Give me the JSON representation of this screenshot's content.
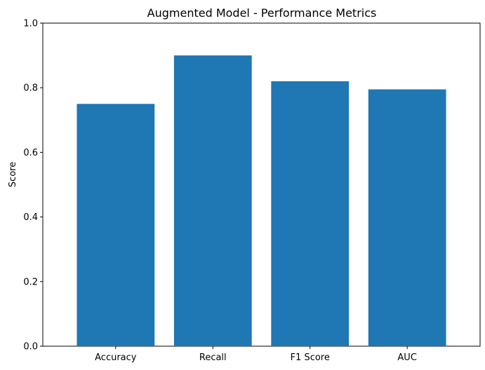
{
  "chart_data": {
    "type": "bar",
    "title": "Augmented Model - Performance Metrics",
    "xlabel": "",
    "ylabel": "Score",
    "categories": [
      "Accuracy",
      "Recall",
      "F1 Score",
      "AUC"
    ],
    "values": [
      0.75,
      0.9,
      0.82,
      0.795
    ],
    "ylim": [
      0,
      1.0
    ],
    "yticks": [
      "0.0",
      "0.2",
      "0.4",
      "0.6",
      "0.8",
      "1.0"
    ],
    "grid": false,
    "bar_color": "#1f77b4"
  }
}
